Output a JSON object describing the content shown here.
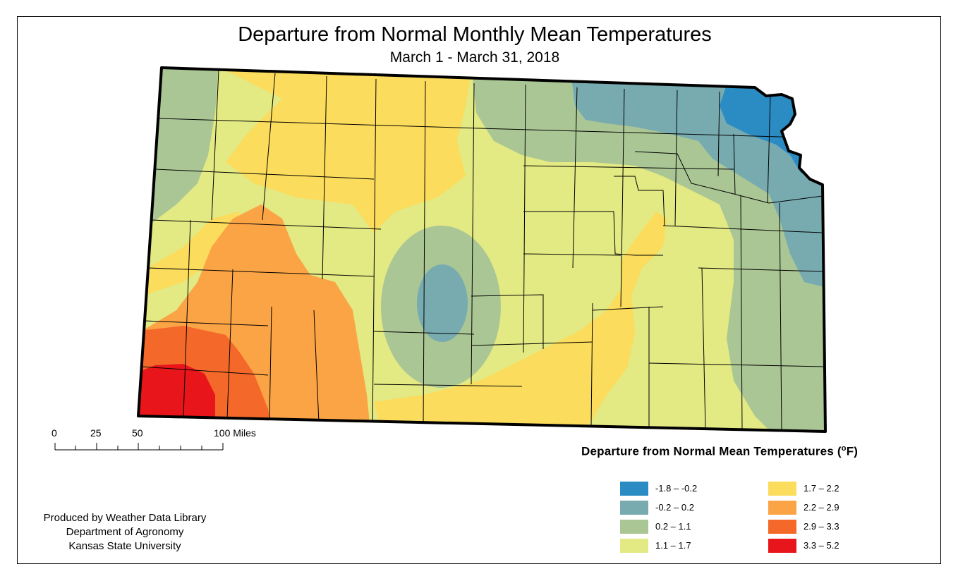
{
  "title": "Departure from Normal Monthly Mean Temperatures",
  "subtitle": "March 1 - March 31, 2018",
  "scale_bar": {
    "labels": [
      "0",
      "25",
      "50",
      "100 Miles"
    ]
  },
  "legend": {
    "title": "Departure from Normal Mean Temperatures (",
    "unit_degree": "o",
    "unit_letter": "F)",
    "items": [
      {
        "label": "-1.8 – -0.2",
        "color": "#2b8cc4"
      },
      {
        "label": "-0.2 – 0.2",
        "color": "#77abb0"
      },
      {
        "label": "0.2 – 1.1",
        "color": "#abc695"
      },
      {
        "label": "1.1 – 1.7",
        "color": "#e3e983"
      },
      {
        "label": "1.7 – 2.2",
        "color": "#fcdc5c"
      },
      {
        "label": "2.2 – 2.9",
        "color": "#fba446"
      },
      {
        "label": "2.9 – 3.3",
        "color": "#f4692a"
      },
      {
        "label": "3.3 – 5.2",
        "color": "#e8161b"
      }
    ]
  },
  "credit": {
    "line1": "Produced by Weather Data Library",
    "line2": "Department of Agronomy",
    "line3": "Kansas State University"
  }
}
